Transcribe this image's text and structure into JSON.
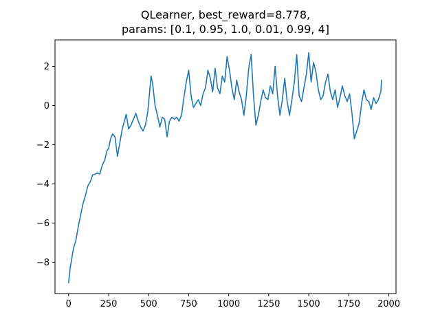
{
  "chart_data": {
    "type": "line",
    "title": {
      "line1": "QLearner, best_reward=8.778,",
      "line2": "params: [0.1, 0.95, 1.0, 0.01, 0.99, 4]"
    },
    "xlabel": "",
    "ylabel": "",
    "xlim": [
      -85,
      2045
    ],
    "ylim": [
      -9.6,
      3.35
    ],
    "xticks": [
      0,
      250,
      500,
      750,
      1000,
      1250,
      1500,
      1750,
      2000
    ],
    "yticks": [
      -8,
      -6,
      -4,
      -2,
      0,
      2
    ],
    "xtick_labels": [
      "0",
      "250",
      "500",
      "750",
      "1000",
      "1250",
      "1500",
      "1750",
      "2000"
    ],
    "ytick_labels": [
      "−8",
      "−6",
      "−4",
      "−2",
      "0",
      "2"
    ],
    "grid": false,
    "legend": "none",
    "series": [
      {
        "color": "#1f77b4",
        "x": [
          0,
          10,
          20,
          30,
          45,
          60,
          75,
          90,
          105,
          120,
          135,
          150,
          165,
          180,
          195,
          210,
          225,
          240,
          250,
          262,
          275,
          290,
          305,
          320,
          335,
          345,
          360,
          375,
          390,
          405,
          420,
          435,
          450,
          465,
          480,
          495,
          505,
          515,
          525,
          540,
          555,
          570,
          585,
          600,
          615,
          630,
          645,
          660,
          675,
          690,
          705,
          720,
          735,
          750,
          765,
          780,
          795,
          810,
          825,
          840,
          855,
          870,
          885,
          900,
          915,
          930,
          945,
          960,
          975,
          990,
          1005,
          1020,
          1035,
          1050,
          1065,
          1080,
          1095,
          1110,
          1125,
          1140,
          1155,
          1170,
          1185,
          1200,
          1215,
          1230,
          1245,
          1260,
          1275,
          1290,
          1305,
          1320,
          1335,
          1350,
          1365,
          1380,
          1395,
          1410,
          1425,
          1440,
          1455,
          1470,
          1485,
          1500,
          1515,
          1530,
          1545,
          1560,
          1575,
          1590,
          1605,
          1620,
          1635,
          1650,
          1665,
          1680,
          1695,
          1710,
          1725,
          1740,
          1755,
          1770,
          1785,
          1800,
          1815,
          1830,
          1845,
          1860,
          1875,
          1890,
          1905,
          1920,
          1935,
          1950,
          1955
        ],
        "y": [
          -9.05,
          -8.3,
          -7.8,
          -7.3,
          -6.9,
          -6.2,
          -5.6,
          -5.0,
          -4.6,
          -4.1,
          -3.9,
          -3.55,
          -3.5,
          -3.45,
          -3.5,
          -3.05,
          -2.8,
          -2.3,
          -2.2,
          -1.7,
          -1.45,
          -1.6,
          -2.6,
          -1.9,
          -1.2,
          -0.9,
          -0.45,
          -1.2,
          -1.0,
          -0.7,
          -0.4,
          -0.8,
          -1.1,
          -1.3,
          -1.0,
          -0.3,
          0.6,
          1.5,
          1.1,
          0.0,
          -0.5,
          -1.1,
          -0.6,
          -0.7,
          -1.6,
          -0.8,
          -0.6,
          -0.7,
          -0.6,
          -0.8,
          -0.5,
          0.4,
          1.2,
          1.8,
          0.5,
          -0.1,
          0.1,
          0.3,
          0.0,
          0.6,
          0.9,
          1.8,
          1.4,
          0.7,
          1.9,
          0.9,
          0.6,
          1.5,
          1.2,
          2.5,
          1.8,
          0.9,
          0.3,
          1.3,
          0.7,
          0.3,
          -0.5,
          0.5,
          1.9,
          2.6,
          0.5,
          -1.0,
          -0.5,
          0.2,
          0.8,
          0.4,
          0.3,
          1.0,
          0.6,
          2.0,
          0.5,
          -0.5,
          0.3,
          1.4,
          0.2,
          -0.5,
          0.3,
          1.2,
          2.6,
          0.5,
          0.2,
          0.9,
          1.6,
          2.7,
          1.2,
          2.2,
          1.7,
          0.8,
          0.3,
          0.5,
          1.2,
          1.6,
          0.7,
          0.3,
          0.8,
          -0.1,
          0.4,
          1.0,
          0.5,
          0.2,
          0.6,
          -0.4,
          -1.7,
          -1.3,
          -0.9,
          0.1,
          0.8,
          0.3,
          0.2,
          -0.2,
          0.4,
          0.1,
          0.3,
          0.7,
          1.3
        ]
      }
    ]
  }
}
